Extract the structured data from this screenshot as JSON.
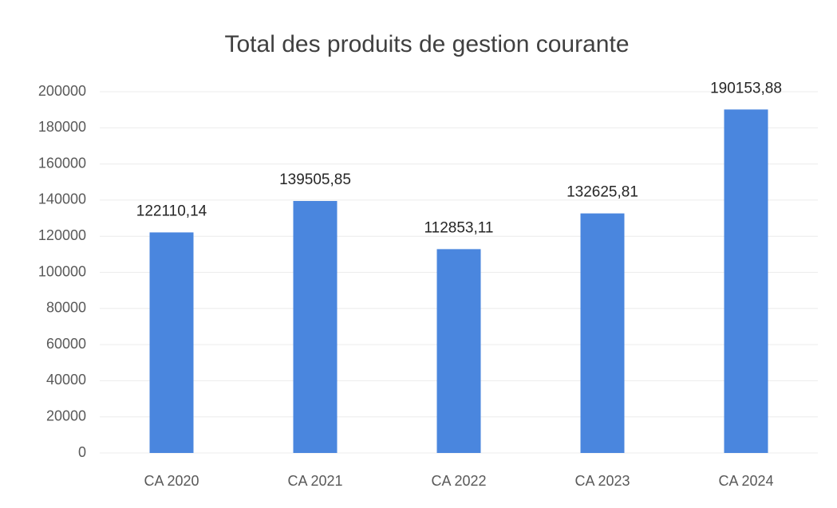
{
  "chart_data": {
    "type": "bar",
    "title": "Total des produits de gestion courante",
    "categories": [
      "CA 2020",
      "CA 2021",
      "CA 2022",
      "CA 2023",
      "CA 2024"
    ],
    "values": [
      122110.14,
      139505.85,
      112853.11,
      132625.81,
      190153.88
    ],
    "value_labels": [
      "122110,14",
      "139505,85",
      "112853,11",
      "132625,81",
      "190153,88"
    ],
    "color": "#4a86de",
    "ylim": [
      0,
      200000
    ],
    "yticks": [
      0,
      20000,
      40000,
      60000,
      80000,
      100000,
      120000,
      140000,
      160000,
      180000,
      200000
    ],
    "grid": true
  }
}
